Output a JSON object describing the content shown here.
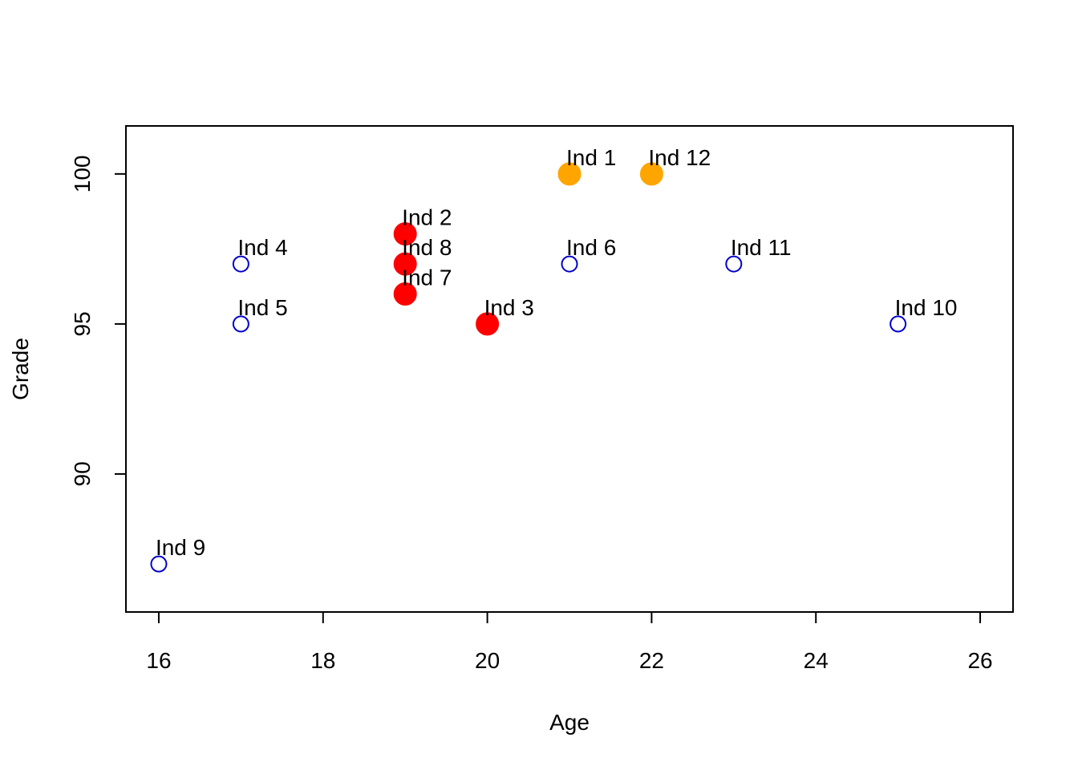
{
  "chart_data": {
    "type": "scatter",
    "title": "",
    "xlabel": "Age",
    "ylabel": "Grade",
    "xlim": [
      15.6,
      26.4
    ],
    "ylim": [
      85.4,
      101.6
    ],
    "x_ticks": [
      16,
      18,
      20,
      22,
      24,
      26
    ],
    "y_ticks": [
      90,
      95,
      100
    ],
    "grid": false,
    "colors": {
      "hollow": "#0000cd",
      "red": "#ff0000",
      "orange": "#ffa500"
    },
    "points": [
      {
        "label": "Ind 1",
        "x": 21,
        "y": 100,
        "style": "filled",
        "color": "#ffa500"
      },
      {
        "label": "Ind 2",
        "x": 19,
        "y": 98,
        "style": "filled",
        "color": "#ff0000"
      },
      {
        "label": "Ind 3",
        "x": 20,
        "y": 95,
        "style": "filled",
        "color": "#ff0000"
      },
      {
        "label": "Ind 4",
        "x": 17,
        "y": 97,
        "style": "hollow",
        "color": "#0000cd"
      },
      {
        "label": "Ind 5",
        "x": 17,
        "y": 95,
        "style": "hollow",
        "color": "#0000cd"
      },
      {
        "label": "Ind 6",
        "x": 21,
        "y": 97,
        "style": "hollow",
        "color": "#0000cd"
      },
      {
        "label": "Ind 7",
        "x": 19,
        "y": 96,
        "style": "filled",
        "color": "#ff0000"
      },
      {
        "label": "Ind 8",
        "x": 19,
        "y": 97,
        "style": "filled",
        "color": "#ff0000"
      },
      {
        "label": "Ind 9",
        "x": 16,
        "y": 87,
        "style": "hollow",
        "color": "#0000cd"
      },
      {
        "label": "Ind 10",
        "x": 25,
        "y": 95,
        "style": "hollow",
        "color": "#0000cd"
      },
      {
        "label": "Ind 11",
        "x": 23,
        "y": 97,
        "style": "hollow",
        "color": "#0000cd"
      },
      {
        "label": "Ind 12",
        "x": 22,
        "y": 100,
        "style": "filled",
        "color": "#ffa500"
      }
    ]
  }
}
